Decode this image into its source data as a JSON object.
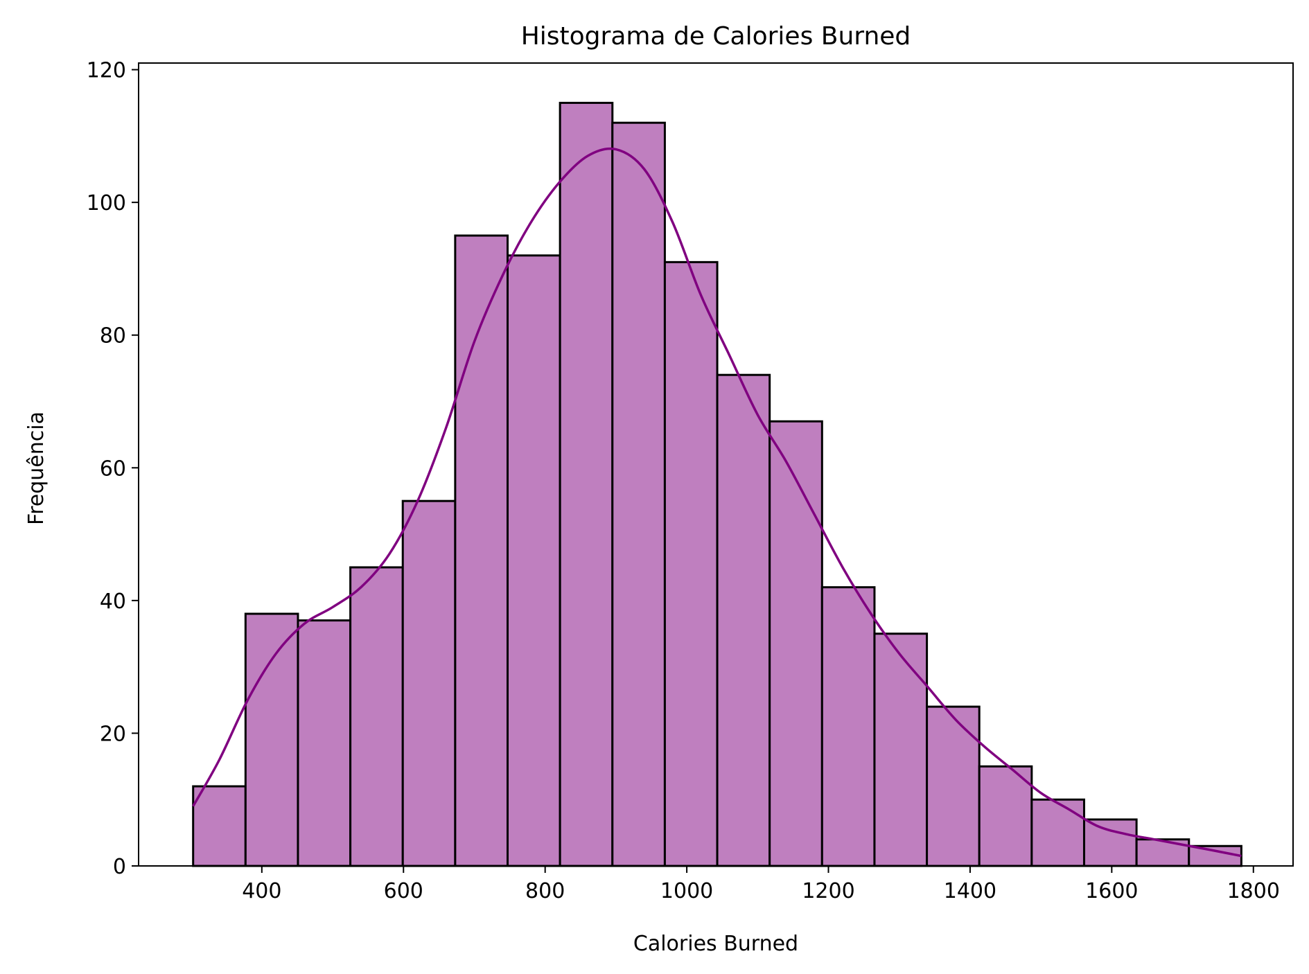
{
  "chart_data": {
    "type": "bar",
    "subtype": "histogram",
    "title": "Histograma de Calories Burned",
    "xlabel": "Calories Burned",
    "ylabel": "Frequência",
    "xlim": [
      226,
      1856
    ],
    "ylim": [
      0,
      121
    ],
    "xticks": [
      400,
      600,
      800,
      1000,
      1200,
      1400,
      1600,
      1800
    ],
    "yticks": [
      0,
      20,
      40,
      60,
      80,
      100,
      120
    ],
    "bins": {
      "start": 303,
      "width": 74,
      "count": 20
    },
    "values": [
      12,
      38,
      37,
      45,
      55,
      95,
      92,
      115,
      112,
      91,
      74,
      67,
      42,
      35,
      24,
      15,
      10,
      7,
      4,
      3
    ],
    "kde": {
      "x": [
        303,
        340,
        380,
        420,
        460,
        500,
        540,
        580,
        620,
        660,
        700,
        740,
        780,
        820,
        860,
        900,
        940,
        980,
        1020,
        1060,
        1100,
        1140,
        1180,
        1220,
        1260,
        1300,
        1340,
        1380,
        1420,
        1460,
        1500,
        1540,
        1580,
        1620,
        1660,
        1700,
        1740,
        1783
      ],
      "y": [
        9,
        16,
        25,
        32,
        36.5,
        39,
        42,
        47,
        55,
        66,
        79,
        89,
        97,
        103,
        107,
        108,
        105,
        97,
        86,
        77,
        68,
        61,
        53,
        45,
        38,
        32,
        27,
        22,
        18,
        14.5,
        11,
        8.5,
        6,
        4.8,
        4,
        3.2,
        2.4,
        1.5
      ]
    },
    "colors": {
      "bar_fill": "#bf7fbf",
      "bar_edge": "#000000",
      "kde_line": "#800080"
    },
    "grid": false,
    "legend": "none"
  }
}
